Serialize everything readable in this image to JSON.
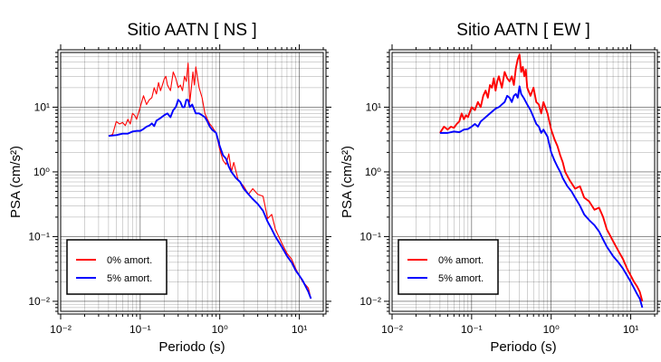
{
  "chart_data": [
    {
      "type": "line",
      "title": "Sitio AATN [ NS ]",
      "xlabel": "Periodo (s)",
      "ylabel": "PSA (cm/s²)",
      "xscale": "log",
      "yscale": "log",
      "xlim": [
        0.01,
        20
      ],
      "ylim": [
        0.007,
        70
      ],
      "grid": true,
      "legend_position": "bottom-left",
      "x_tick_labels": [
        "10⁻²",
        "10⁻¹",
        "10⁰",
        "10¹"
      ],
      "y_tick_labels": [
        "10⁻²",
        "10⁻¹",
        "10⁰",
        "10¹"
      ],
      "series": [
        {
          "name": "0% amort.",
          "color": "#ff0000",
          "x": [
            0.04,
            0.045,
            0.05,
            0.055,
            0.06,
            0.065,
            0.07,
            0.075,
            0.08,
            0.085,
            0.09,
            0.1,
            0.11,
            0.12,
            0.13,
            0.14,
            0.15,
            0.16,
            0.17,
            0.18,
            0.19,
            0.2,
            0.21,
            0.22,
            0.24,
            0.26,
            0.28,
            0.3,
            0.32,
            0.34,
            0.36,
            0.38,
            0.4,
            0.42,
            0.44,
            0.46,
            0.48,
            0.5,
            0.55,
            0.6,
            0.65,
            0.7,
            0.75,
            0.8,
            0.9,
            1.0,
            1.1,
            1.2,
            1.3,
            1.4,
            1.5,
            1.7,
            2.0,
            2.3,
            2.6,
            3.0,
            3.5,
            4.0,
            4.5,
            5.0,
            6.0,
            7.0,
            8.0,
            9.0,
            10.0,
            11.0,
            12.0,
            13.0,
            14.0
          ],
          "values": [
            3.6,
            3.8,
            6.0,
            5.5,
            5.8,
            5.2,
            6.5,
            5.5,
            8.0,
            7.5,
            6.5,
            10.0,
            15.0,
            11.0,
            13.0,
            14.0,
            20.0,
            16.0,
            24.0,
            18.0,
            22.0,
            27.0,
            30.0,
            22.0,
            18.0,
            35.0,
            28.0,
            20.0,
            22.0,
            18.0,
            30.0,
            25.0,
            48.0,
            12.0,
            20.0,
            35.0,
            22.0,
            42.0,
            20.0,
            14.0,
            8.0,
            6.5,
            5.5,
            5.0,
            4.0,
            2.2,
            1.5,
            1.3,
            1.9,
            1.0,
            1.4,
            0.75,
            0.6,
            0.45,
            0.55,
            0.45,
            0.42,
            0.19,
            0.22,
            0.13,
            0.08,
            0.055,
            0.045,
            0.032,
            0.025,
            0.02,
            0.018,
            0.016,
            0.011
          ]
        },
        {
          "name": "5% amort.",
          "color": "#0000ff",
          "x": [
            0.04,
            0.05,
            0.06,
            0.07,
            0.08,
            0.09,
            0.1,
            0.11,
            0.12,
            0.13,
            0.14,
            0.15,
            0.16,
            0.18,
            0.2,
            0.22,
            0.24,
            0.26,
            0.28,
            0.3,
            0.32,
            0.34,
            0.36,
            0.38,
            0.4,
            0.42,
            0.45,
            0.5,
            0.55,
            0.6,
            0.65,
            0.7,
            0.75,
            0.8,
            0.9,
            1.0,
            1.1,
            1.2,
            1.3,
            1.4,
            1.6,
            1.8,
            2.0,
            2.3,
            2.6,
            3.0,
            3.5,
            4.0,
            4.5,
            5.0,
            6.0,
            7.0,
            8.0,
            9.0,
            10.0,
            11.0,
            12.0,
            13.0,
            14.0
          ],
          "values": [
            3.6,
            3.7,
            3.9,
            3.9,
            4.2,
            4.3,
            4.3,
            4.6,
            5.0,
            5.2,
            5.6,
            5.1,
            6.2,
            6.8,
            7.5,
            8.0,
            7.0,
            9.0,
            10.0,
            13.0,
            12.0,
            10.0,
            10.0,
            13.0,
            13.0,
            10.0,
            11.0,
            8.0,
            8.0,
            7.5,
            7.0,
            6.0,
            5.0,
            4.5,
            4.0,
            2.5,
            1.8,
            1.6,
            1.2,
            1.0,
            0.8,
            0.7,
            0.55,
            0.45,
            0.38,
            0.32,
            0.25,
            0.17,
            0.13,
            0.1,
            0.07,
            0.05,
            0.04,
            0.03,
            0.025,
            0.021,
            0.017,
            0.014,
            0.011
          ]
        }
      ]
    },
    {
      "type": "line",
      "title": "Sitio AATN [ EW ]",
      "xlabel": "Periodo (s)",
      "ylabel": "PSA (cm/s²)",
      "xscale": "log",
      "yscale": "log",
      "xlim": [
        0.01,
        20
      ],
      "ylim": [
        0.007,
        70
      ],
      "grid": true,
      "legend_position": "bottom-left",
      "x_tick_labels": [
        "10⁻²",
        "10⁻¹",
        "10⁰",
        "10¹"
      ],
      "y_tick_labels": [
        "10⁻²",
        "10⁻¹",
        "10⁰",
        "10¹"
      ],
      "series": [
        {
          "name": "0% amort.",
          "color": "#ff0000",
          "x": [
            0.04,
            0.045,
            0.05,
            0.055,
            0.06,
            0.065,
            0.07,
            0.075,
            0.08,
            0.085,
            0.09,
            0.1,
            0.11,
            0.12,
            0.13,
            0.14,
            0.15,
            0.16,
            0.17,
            0.18,
            0.19,
            0.2,
            0.21,
            0.22,
            0.24,
            0.26,
            0.28,
            0.3,
            0.32,
            0.34,
            0.36,
            0.38,
            0.4,
            0.42,
            0.44,
            0.46,
            0.48,
            0.5,
            0.55,
            0.6,
            0.65,
            0.7,
            0.75,
            0.8,
            0.9,
            1.0,
            1.1,
            1.2,
            1.3,
            1.4,
            1.5,
            1.7,
            2.0,
            2.3,
            2.6,
            3.0,
            3.5,
            4.0,
            4.5,
            5.0,
            6.0,
            7.0,
            8.0,
            9.0,
            10.0,
            11.0,
            12.0,
            13.0,
            14.0
          ],
          "values": [
            4.0,
            5.0,
            4.5,
            5.0,
            4.8,
            5.5,
            6.0,
            8.0,
            6.5,
            7.5,
            7.0,
            10.0,
            9.0,
            12.0,
            10.0,
            15.0,
            18.0,
            14.0,
            22.0,
            20.0,
            28.0,
            18.0,
            25.0,
            30.0,
            20.0,
            35.0,
            28.0,
            25.0,
            30.0,
            22.0,
            40.0,
            55.0,
            65.0,
            35.0,
            42.0,
            30.0,
            38.0,
            20.0,
            15.0,
            20.0,
            12.0,
            11.0,
            8.0,
            12.0,
            8.0,
            4.5,
            3.2,
            2.5,
            1.8,
            1.4,
            1.0,
            0.75,
            0.55,
            0.6,
            0.4,
            0.35,
            0.26,
            0.28,
            0.2,
            0.13,
            0.085,
            0.06,
            0.045,
            0.032,
            0.025,
            0.02,
            0.017,
            0.014,
            0.01
          ]
        },
        {
          "name": "5% amort.",
          "color": "#0000ff",
          "x": [
            0.04,
            0.05,
            0.06,
            0.07,
            0.08,
            0.09,
            0.1,
            0.11,
            0.12,
            0.13,
            0.14,
            0.15,
            0.16,
            0.18,
            0.2,
            0.22,
            0.24,
            0.26,
            0.28,
            0.3,
            0.32,
            0.34,
            0.36,
            0.38,
            0.4,
            0.42,
            0.45,
            0.5,
            0.55,
            0.6,
            0.65,
            0.7,
            0.75,
            0.8,
            0.9,
            1.0,
            1.1,
            1.2,
            1.3,
            1.4,
            1.6,
            1.8,
            2.0,
            2.3,
            2.6,
            3.0,
            3.5,
            4.0,
            4.5,
            5.0,
            6.0,
            7.0,
            8.0,
            9.0,
            10.0,
            11.0,
            12.0,
            13.0,
            14.0
          ],
          "values": [
            4.0,
            4.0,
            4.2,
            4.1,
            4.5,
            4.6,
            5.0,
            5.5,
            5.0,
            6.0,
            6.5,
            7.0,
            7.5,
            8.5,
            9.5,
            10.0,
            11.0,
            12.0,
            15.0,
            14.0,
            12.0,
            15.0,
            16.0,
            14.0,
            21.0,
            16.0,
            14.0,
            11.0,
            9.0,
            7.0,
            5.5,
            5.0,
            4.0,
            4.5,
            3.5,
            2.0,
            1.5,
            1.2,
            1.0,
            0.8,
            0.6,
            0.5,
            0.4,
            0.3,
            0.22,
            0.18,
            0.15,
            0.12,
            0.09,
            0.07,
            0.05,
            0.04,
            0.032,
            0.025,
            0.02,
            0.016,
            0.013,
            0.011,
            0.008
          ]
        }
      ]
    }
  ]
}
